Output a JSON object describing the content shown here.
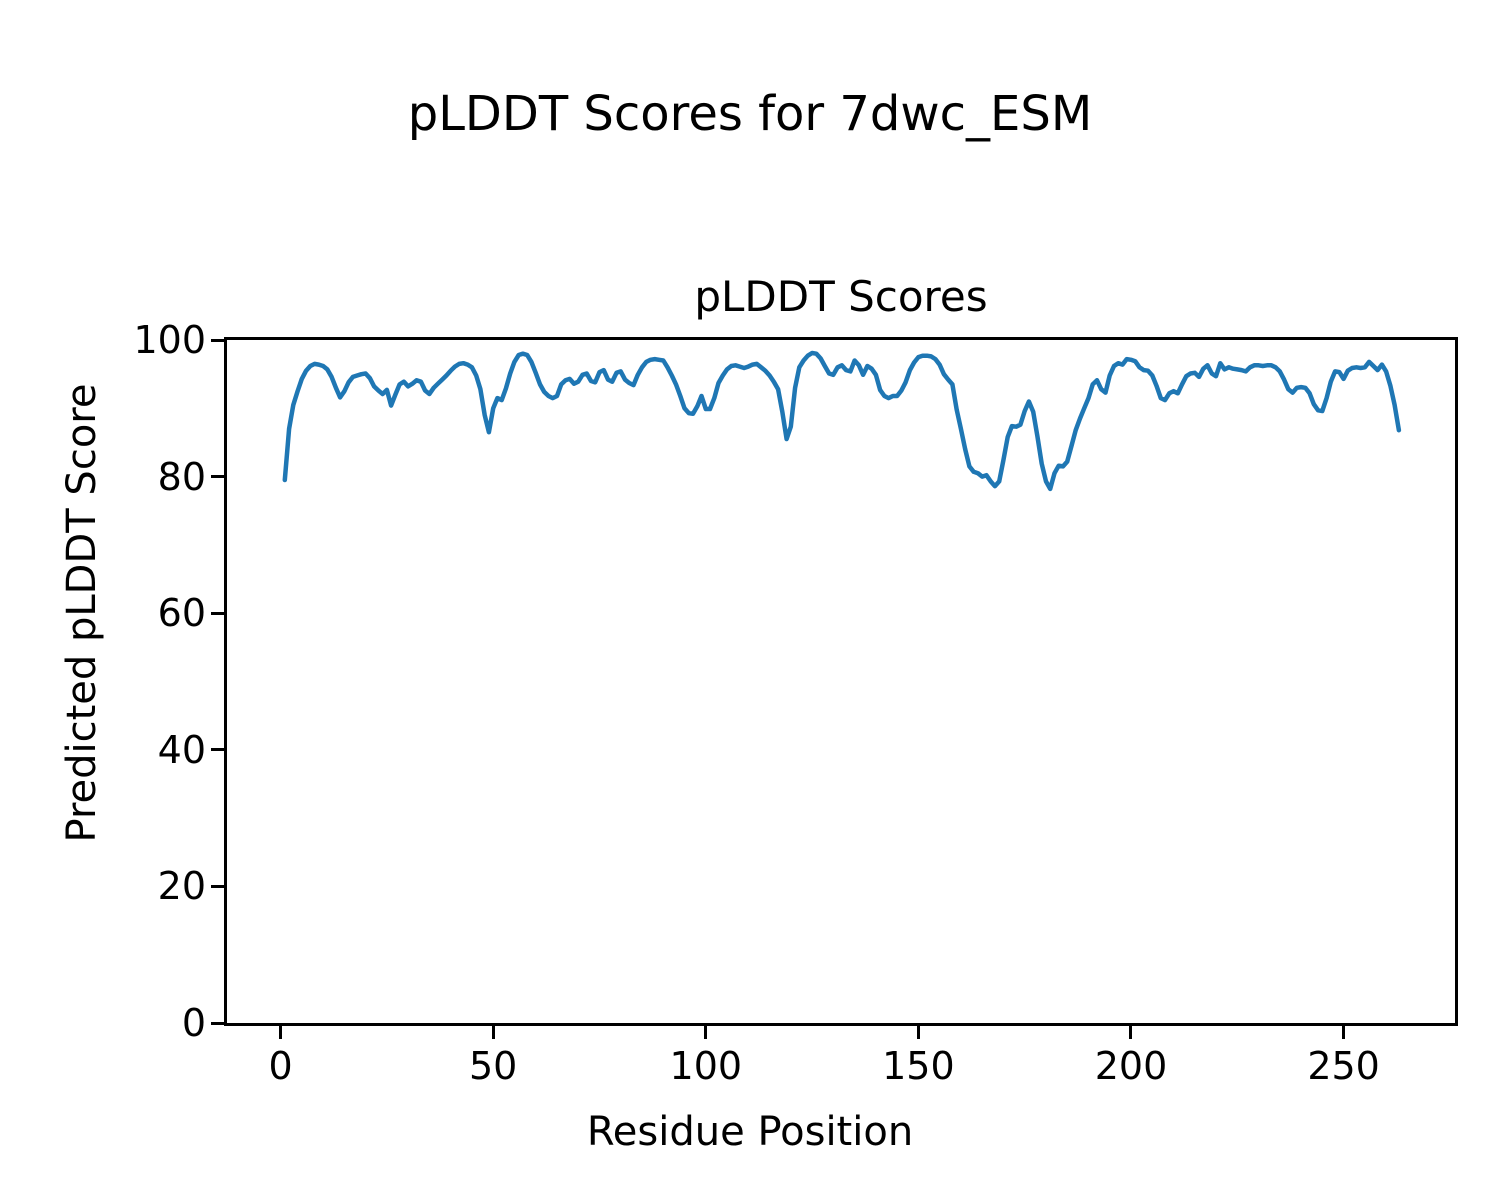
{
  "figure": {
    "suptitle": "pLDDT Scores for 7dwc_ESM"
  },
  "chart_data": {
    "type": "line",
    "title": "pLDDT Scores",
    "xlabel": "Residue Position",
    "ylabel": "Predicted pLDDT Score",
    "xlim": [
      -12.6,
      276.2
    ],
    "ylim": [
      0,
      100
    ],
    "xticks": [
      0,
      50,
      100,
      150,
      200,
      250
    ],
    "yticks": [
      0,
      20,
      40,
      60,
      80,
      100
    ],
    "grid": false,
    "legend": "none",
    "line_color": "#1f77b4",
    "line_width": 4.5,
    "background": "#ffffff",
    "series": [
      {
        "name": "pLDDT",
        "x_start": 1,
        "x_step": 1,
        "values": [
          79.5,
          87.0,
          90.5,
          92.5,
          94.3,
          95.5,
          96.2,
          96.5,
          96.4,
          96.2,
          95.7,
          94.6,
          93.0,
          91.6,
          92.5,
          93.8,
          94.6,
          94.8,
          95.0,
          95.1,
          94.4,
          93.2,
          92.6,
          92.1,
          92.7,
          90.4,
          92.0,
          93.5,
          93.9,
          93.2,
          93.6,
          94.1,
          93.9,
          92.6,
          92.1,
          93.0,
          93.6,
          94.2,
          94.8,
          95.5,
          96.1,
          96.5,
          96.6,
          96.4,
          96.0,
          94.8,
          92.8,
          89.0,
          86.5,
          90.0,
          91.5,
          91.2,
          92.9,
          95.1,
          96.8,
          97.8,
          98.0,
          97.8,
          96.8,
          95.2,
          93.5,
          92.4,
          91.8,
          91.5,
          91.8,
          93.5,
          94.1,
          94.3,
          93.6,
          93.9,
          94.9,
          95.1,
          94.0,
          93.8,
          95.3,
          95.6,
          94.2,
          93.9,
          95.2,
          95.4,
          94.2,
          93.7,
          93.4,
          94.9,
          96.0,
          96.8,
          97.1,
          97.2,
          97.1,
          97.0,
          96.0,
          94.8,
          93.5,
          91.8,
          90.0,
          89.3,
          89.2,
          90.3,
          91.8,
          89.9,
          89.9,
          91.5,
          93.7,
          94.8,
          95.7,
          96.2,
          96.3,
          96.1,
          95.9,
          96.1,
          96.4,
          96.5,
          96.0,
          95.5,
          94.8,
          93.9,
          92.8,
          89.5,
          85.5,
          87.3,
          93.0,
          96.0,
          97.0,
          97.7,
          98.1,
          98.0,
          97.3,
          96.2,
          95.1,
          94.9,
          96.0,
          96.3,
          95.6,
          95.4,
          97.0,
          96.3,
          94.9,
          96.2,
          95.8,
          94.9,
          92.7,
          91.8,
          91.5,
          91.8,
          91.8,
          92.6,
          93.8,
          95.6,
          96.7,
          97.5,
          97.7,
          97.7,
          97.6,
          97.2,
          96.4,
          95.0,
          94.2,
          93.5,
          89.8,
          87.0,
          84.0,
          81.5,
          80.7,
          80.5,
          80.0,
          80.2,
          79.3,
          78.6,
          79.3,
          82.4,
          85.8,
          87.4,
          87.3,
          87.6,
          89.6,
          91.0,
          89.5,
          85.9,
          81.9,
          79.3,
          78.2,
          80.5,
          81.6,
          81.5,
          82.2,
          84.5,
          86.8,
          88.5,
          90.0,
          91.5,
          93.5,
          94.1,
          92.8,
          92.3,
          94.8,
          96.2,
          96.6,
          96.4,
          97.2,
          97.1,
          96.9,
          96.0,
          95.6,
          95.5,
          94.8,
          93.3,
          91.5,
          91.2,
          92.2,
          92.5,
          92.2,
          93.5,
          94.7,
          95.1,
          95.2,
          94.6,
          95.8,
          96.3,
          95.1,
          94.7,
          96.6,
          95.7,
          96.0,
          95.8,
          95.7,
          95.6,
          95.4,
          96.0,
          96.3,
          96.3,
          96.2,
          96.3,
          96.3,
          96.0,
          95.4,
          94.2,
          92.8,
          92.3,
          93.0,
          93.1,
          93.0,
          92.2,
          90.6,
          89.7,
          89.6,
          91.5,
          93.9,
          95.4,
          95.3,
          94.3,
          95.5,
          95.9,
          96.0,
          95.9,
          96.0,
          96.8,
          96.2,
          95.6,
          96.4,
          95.4,
          93.3,
          90.5,
          86.8
        ]
      }
    ]
  }
}
